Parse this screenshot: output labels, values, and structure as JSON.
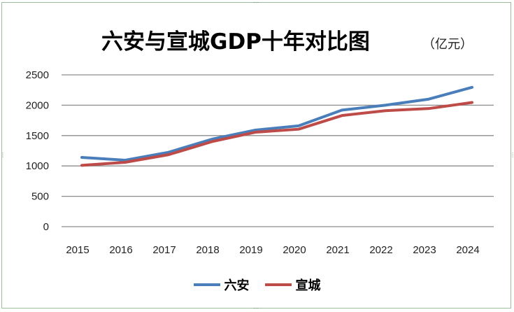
{
  "chart_data": {
    "type": "line",
    "title": "六安与宣城GDP十年对比图",
    "unit_label": "（亿元）",
    "xlabel": "",
    "ylabel": "",
    "categories": [
      "2015",
      "2016",
      "2017",
      "2018",
      "2019",
      "2020",
      "2021",
      "2022",
      "2023",
      "2024"
    ],
    "ylim": [
      0,
      2500
    ],
    "yticks": [
      0,
      500,
      1000,
      1500,
      2000,
      2500
    ],
    "grid": true,
    "legend": "bottom",
    "series": [
      {
        "name": "六安",
        "color": "#4a7ebb",
        "values": [
          1140,
          1095,
          1225,
          1440,
          1590,
          1660,
          1920,
          2000,
          2100,
          2295
        ]
      },
      {
        "name": "宣城",
        "color": "#be4b48",
        "values": [
          1010,
          1060,
          1185,
          1400,
          1555,
          1605,
          1830,
          1910,
          1945,
          2045
        ]
      }
    ]
  }
}
